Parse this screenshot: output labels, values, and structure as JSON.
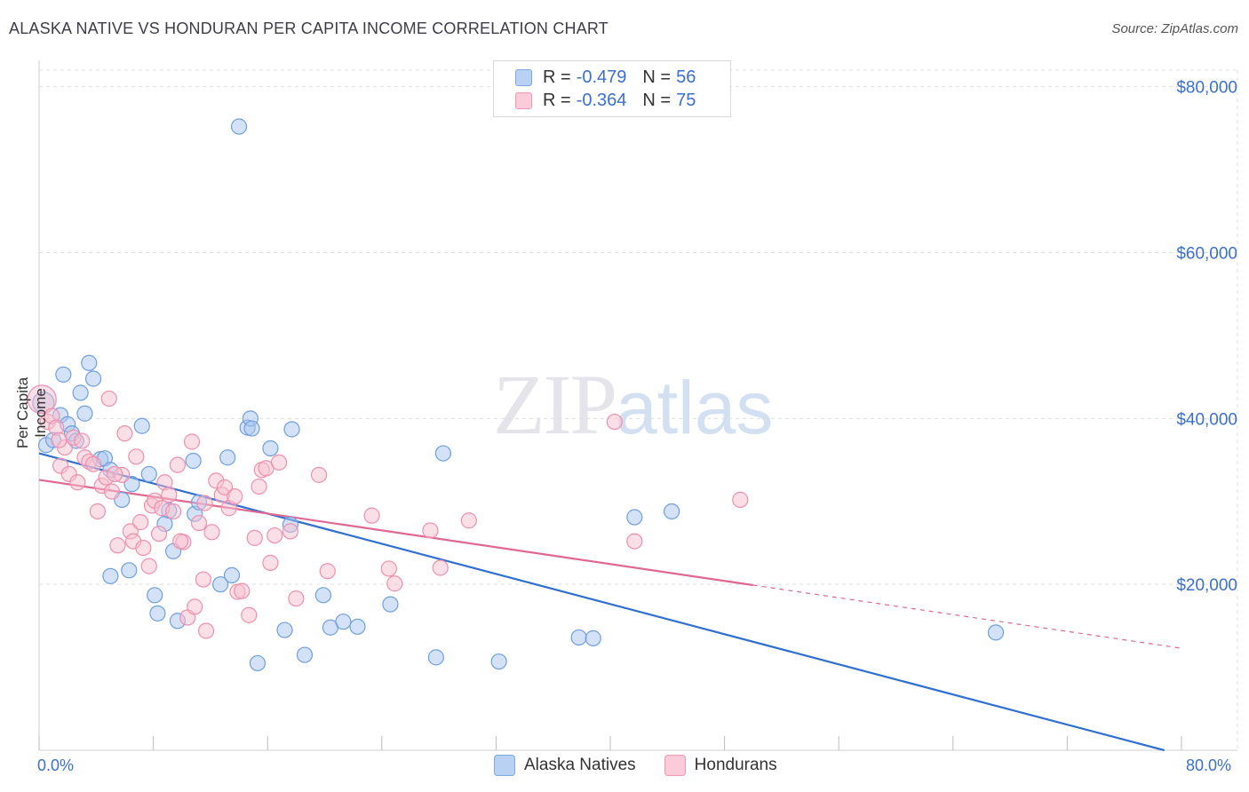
{
  "header": {
    "title": "ALASKA NATIVE VS HONDURAN PER CAPITA INCOME CORRELATION CHART",
    "source": "Source: ZipAtlas.com"
  },
  "watermark": {
    "zip": "ZIP",
    "atlas": "atlas"
  },
  "legend_top": [
    {
      "r_label": "R =",
      "r_value": "-0.479",
      "n_label": "N =",
      "n_value": "56"
    },
    {
      "r_label": "R =",
      "r_value": "-0.364",
      "n_label": "N =",
      "n_value": "75"
    }
  ],
  "colors": {
    "blue_fill": "#a9c6ef",
    "blue_stroke": "#6f9fe0",
    "blue_line": "#2f6fd1",
    "pink_fill": "#f7bfd0",
    "pink_stroke": "#ee8fae",
    "pink_line": "#e0678f",
    "tick_label": "#3a6fd0",
    "grid": "#dedede"
  },
  "chart_data": {
    "type": "scatter",
    "title": "ALASKA NATIVE VS HONDURAN PER CAPITA INCOME CORRELATION CHART",
    "xlabel": "",
    "ylabel": "Per Capita Income",
    "xlim": [
      0,
      80
    ],
    "ylim": [
      0,
      82000
    ],
    "x_tick_labels": [
      "0.0%",
      "80.0%"
    ],
    "y_ticks": [
      20000,
      40000,
      60000,
      80000
    ],
    "y_tick_labels": [
      "$20,000",
      "$40,000",
      "$60,000",
      "$80,000"
    ],
    "grid": true,
    "legend_position": "bottom",
    "series": [
      {
        "name": "Alaska Natives",
        "r": -0.479,
        "n": 56,
        "trend": {
          "x0": 0,
          "y0": 35800,
          "x1": 78.8,
          "y1": 0,
          "solid_to": 78.8
        },
        "points": [
          [
            0.3,
            41900
          ],
          [
            0.5,
            36800
          ],
          [
            1.0,
            37400
          ],
          [
            1.5,
            40400
          ],
          [
            1.7,
            45300
          ],
          [
            2.0,
            39300
          ],
          [
            2.3,
            38200
          ],
          [
            2.6,
            37300
          ],
          [
            2.9,
            43100
          ],
          [
            3.2,
            40600
          ],
          [
            3.5,
            46700
          ],
          [
            3.8,
            44800
          ],
          [
            4.3,
            35100
          ],
          [
            4.6,
            35200
          ],
          [
            5.0,
            33800
          ],
          [
            5.0,
            21000
          ],
          [
            5.8,
            30200
          ],
          [
            6.3,
            21700
          ],
          [
            6.5,
            32100
          ],
          [
            7.2,
            39100
          ],
          [
            7.7,
            33300
          ],
          [
            8.1,
            18700
          ],
          [
            8.3,
            16500
          ],
          [
            8.8,
            27300
          ],
          [
            9.1,
            28900
          ],
          [
            9.4,
            24000
          ],
          [
            9.7,
            15600
          ],
          [
            10.8,
            34900
          ],
          [
            10.9,
            28500
          ],
          [
            11.2,
            29900
          ],
          [
            12.7,
            20000
          ],
          [
            13.2,
            35300
          ],
          [
            13.5,
            21100
          ],
          [
            14.0,
            75200
          ],
          [
            14.6,
            38900
          ],
          [
            14.8,
            40000
          ],
          [
            14.9,
            38800
          ],
          [
            15.3,
            10500
          ],
          [
            16.2,
            36400
          ],
          [
            17.2,
            14500
          ],
          [
            17.7,
            38700
          ],
          [
            17.6,
            27200
          ],
          [
            18.6,
            11500
          ],
          [
            19.9,
            18700
          ],
          [
            20.4,
            14800
          ],
          [
            21.3,
            15500
          ],
          [
            22.3,
            14900
          ],
          [
            24.6,
            17600
          ],
          [
            27.8,
            11200
          ],
          [
            28.3,
            35800
          ],
          [
            32.2,
            10700
          ],
          [
            37.8,
            13600
          ],
          [
            38.8,
            13500
          ],
          [
            41.7,
            28100
          ],
          [
            44.3,
            28800
          ],
          [
            67.0,
            14200
          ]
        ]
      },
      {
        "name": "Hondurans",
        "r": -0.364,
        "n": 75,
        "trend": {
          "x0": 0,
          "y0": 32600,
          "x1": 80,
          "y1": 12300,
          "solid_to": 50
        },
        "points": [
          [
            0.2,
            42300
          ],
          [
            0.6,
            39600
          ],
          [
            0.9,
            40300
          ],
          [
            1.2,
            38900
          ],
          [
            1.5,
            34300
          ],
          [
            1.8,
            36500
          ],
          [
            2.1,
            33300
          ],
          [
            2.4,
            37700
          ],
          [
            2.7,
            32300
          ],
          [
            3.0,
            37300
          ],
          [
            3.2,
            35300
          ],
          [
            3.5,
            34800
          ],
          [
            3.8,
            34500
          ],
          [
            4.1,
            28800
          ],
          [
            4.4,
            31900
          ],
          [
            4.7,
            32900
          ],
          [
            4.9,
            42400
          ],
          [
            5.1,
            31200
          ],
          [
            5.5,
            24700
          ],
          [
            5.8,
            33200
          ],
          [
            6.0,
            38200
          ],
          [
            6.4,
            26400
          ],
          [
            6.6,
            25200
          ],
          [
            6.8,
            35400
          ],
          [
            7.1,
            27500
          ],
          [
            7.3,
            24400
          ],
          [
            7.7,
            22200
          ],
          [
            7.9,
            29500
          ],
          [
            8.1,
            30100
          ],
          [
            8.4,
            26100
          ],
          [
            8.6,
            29200
          ],
          [
            8.8,
            32300
          ],
          [
            9.1,
            30800
          ],
          [
            9.4,
            28800
          ],
          [
            9.7,
            34400
          ],
          [
            10.1,
            25100
          ],
          [
            10.4,
            16000
          ],
          [
            10.7,
            37200
          ],
          [
            10.9,
            17300
          ],
          [
            11.2,
            27400
          ],
          [
            11.5,
            20600
          ],
          [
            11.7,
            14400
          ],
          [
            12.1,
            26300
          ],
          [
            12.4,
            32500
          ],
          [
            12.8,
            30800
          ],
          [
            13.0,
            31700
          ],
          [
            13.3,
            29200
          ],
          [
            13.7,
            30600
          ],
          [
            13.9,
            19100
          ],
          [
            14.2,
            19200
          ],
          [
            14.7,
            16300
          ],
          [
            15.1,
            25600
          ],
          [
            15.6,
            33800
          ],
          [
            15.9,
            34000
          ],
          [
            16.2,
            22600
          ],
          [
            16.5,
            25900
          ],
          [
            16.8,
            34700
          ],
          [
            17.6,
            26400
          ],
          [
            18.0,
            18300
          ],
          [
            19.6,
            33200
          ],
          [
            20.2,
            21600
          ],
          [
            23.3,
            28300
          ],
          [
            24.5,
            21900
          ],
          [
            24.9,
            20100
          ],
          [
            27.4,
            26500
          ],
          [
            28.1,
            22000
          ],
          [
            30.1,
            27700
          ],
          [
            40.3,
            39600
          ],
          [
            41.7,
            25200
          ],
          [
            49.1,
            30200
          ],
          [
            1.4,
            37400
          ],
          [
            5.3,
            33300
          ],
          [
            9.9,
            25200
          ],
          [
            11.6,
            29800
          ],
          [
            15.4,
            31800
          ]
        ]
      }
    ]
  }
}
